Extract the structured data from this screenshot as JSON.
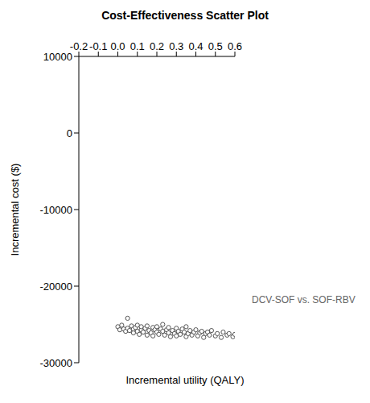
{
  "chart_data": {
    "type": "scatter",
    "title": "Cost-Effectiveness Scatter Plot",
    "x_label": "Incremental utility (QALY)",
    "y_label": "Incremental cost ($)",
    "xlim": [
      -0.2,
      0.6
    ],
    "ylim": [
      -30000,
      10000
    ],
    "xticks": [
      -0.2,
      -0.1,
      {
        "value": 0,
        "label": "0.0"
      },
      0.1,
      0.2,
      0.3,
      0.4,
      0.5,
      0.6
    ],
    "yticks": [
      -30000,
      -20000,
      -10000,
      0,
      10000
    ],
    "grid": false,
    "marker": "circle",
    "series": [
      {
        "name": "DCV-SOF vs. SOF-RBV",
        "color": "#555555",
        "x": [
          0.0,
          0.01,
          0.02,
          0.03,
          0.04,
          0.05,
          0.05,
          0.06,
          0.07,
          0.08,
          0.08,
          0.09,
          0.1,
          0.1,
          0.11,
          0.12,
          0.12,
          0.13,
          0.14,
          0.15,
          0.15,
          0.16,
          0.17,
          0.18,
          0.18,
          0.19,
          0.2,
          0.2,
          0.21,
          0.22,
          0.23,
          0.23,
          0.24,
          0.25,
          0.26,
          0.26,
          0.27,
          0.28,
          0.29,
          0.3,
          0.3,
          0.31,
          0.32,
          0.33,
          0.34,
          0.35,
          0.35,
          0.36,
          0.37,
          0.38,
          0.39,
          0.4,
          0.41,
          0.42,
          0.43,
          0.44,
          0.45,
          0.46,
          0.47,
          0.48,
          0.5,
          0.51,
          0.53,
          0.54,
          0.56,
          0.57,
          0.59,
          0.6
        ],
        "values": [
          -25300,
          -25700,
          -25100,
          -25600,
          -25900,
          -24200,
          -25500,
          -25800,
          -25200,
          -26100,
          -25600,
          -25400,
          -25900,
          -25100,
          -26300,
          -25700,
          -25300,
          -26000,
          -25500,
          -26400,
          -25200,
          -25800,
          -26100,
          -25400,
          -26500,
          -25700,
          -26000,
          -25300,
          -26300,
          -25600,
          -25900,
          -25000,
          -26400,
          -25700,
          -26100,
          -25400,
          -26600,
          -25800,
          -26200,
          -25500,
          -26500,
          -25900,
          -26300,
          -25600,
          -26000,
          -26600,
          -25300,
          -26200,
          -25800,
          -26400,
          -26000,
          -25700,
          -26500,
          -26100,
          -25900,
          -26700,
          -26200,
          -26000,
          -26400,
          -25800,
          -26500,
          -26200,
          -26700,
          -26000,
          -26400,
          -26200,
          -26600,
          -26300
        ]
      }
    ]
  }
}
